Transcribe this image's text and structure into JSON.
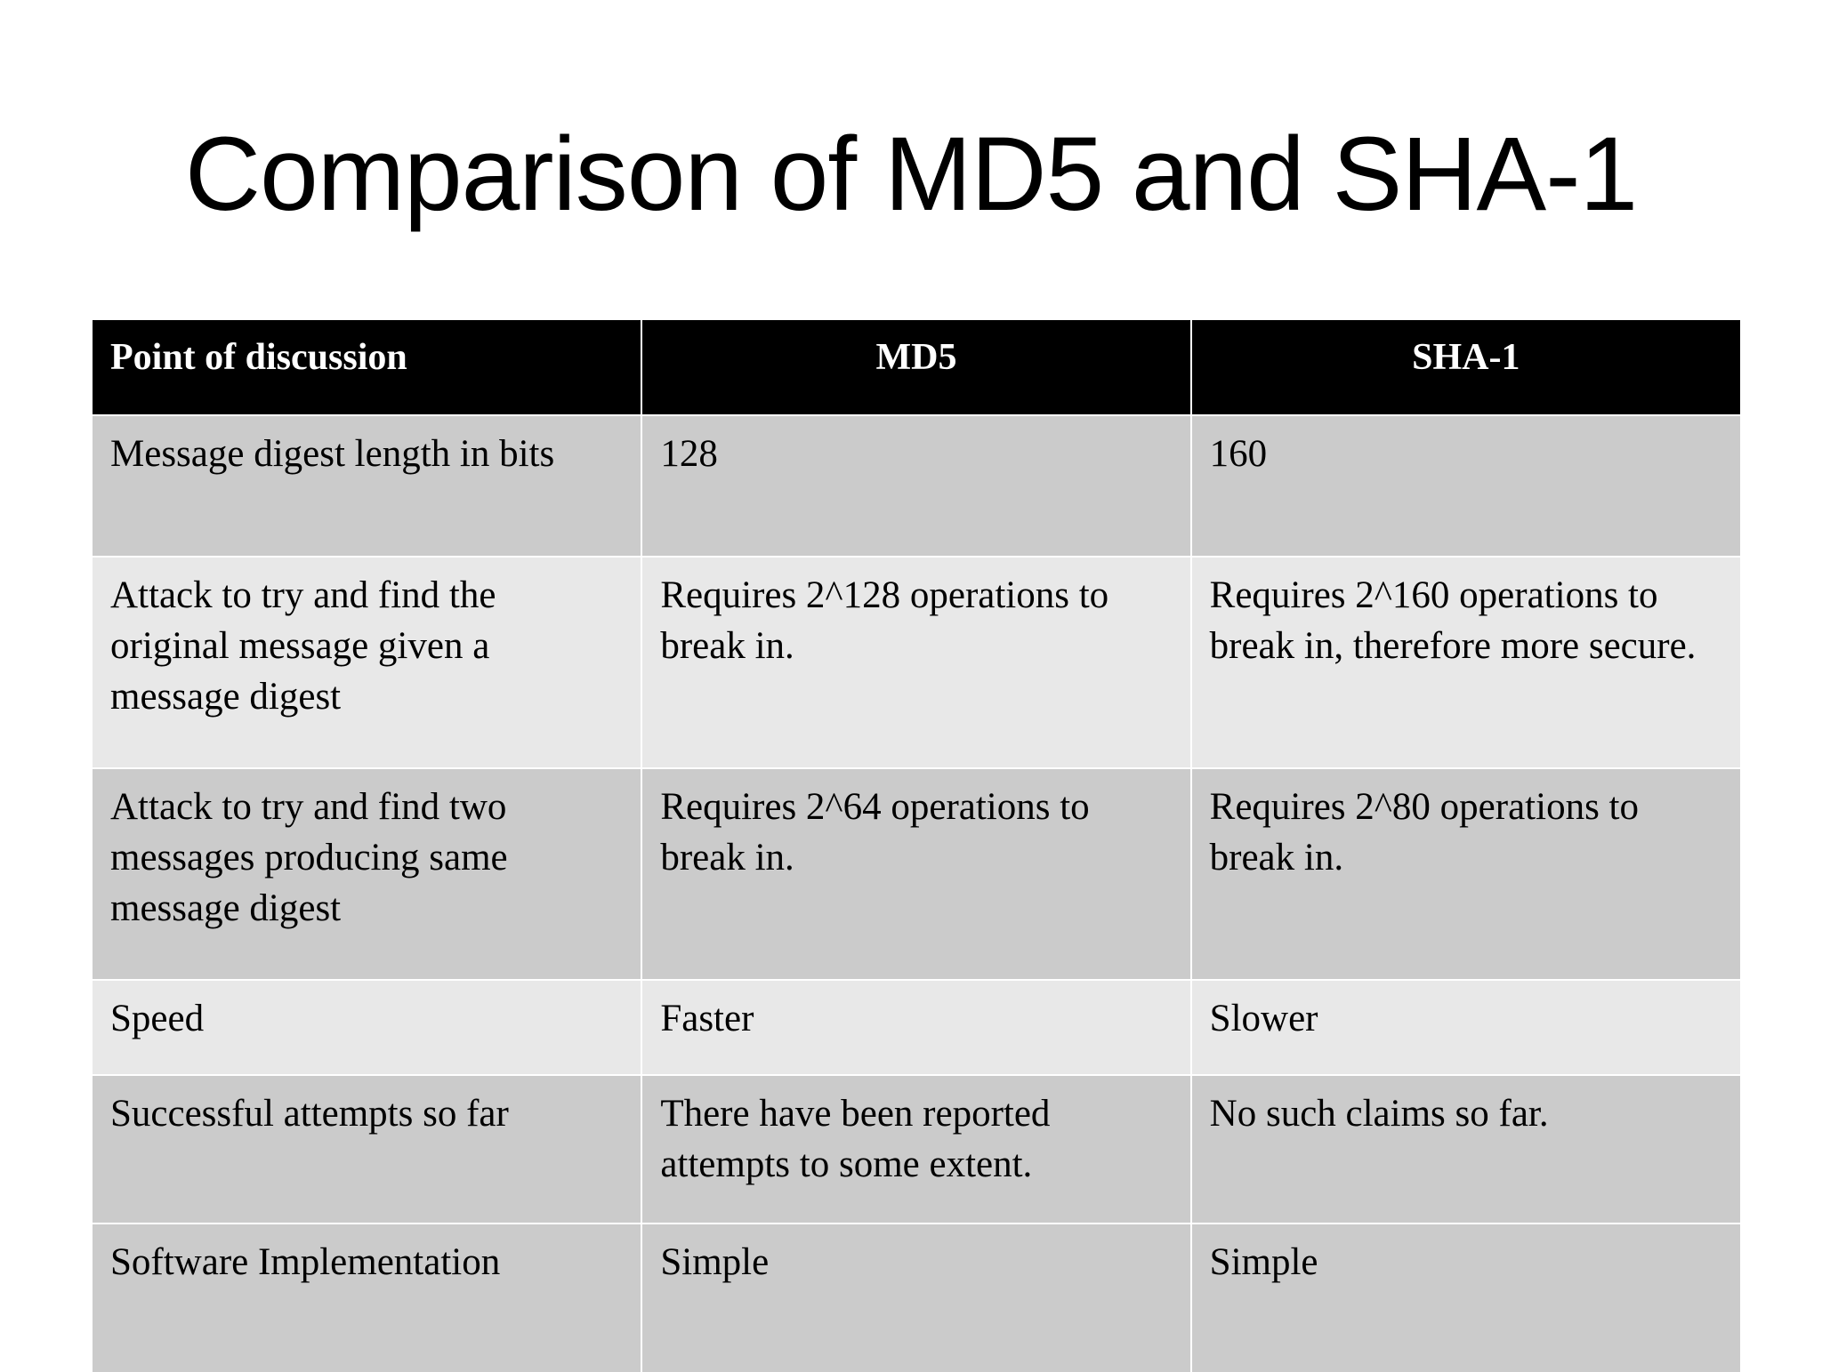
{
  "title": "Comparison of MD5 and SHA-1",
  "table": {
    "headers": [
      "Point of discussion",
      "MD5",
      "SHA-1"
    ],
    "rows": [
      [
        "Message digest length in bits",
        "128",
        "160"
      ],
      [
        "Attack to try and find the original message given a message digest",
        "Requires 2^128 operations to break in.",
        "Requires 2^160 operations to break in, therefore more secure."
      ],
      [
        "Attack to try and find two messages producing same message digest",
        "Requires 2^64 operations to break in.",
        "Requires 2^80 operations to break in."
      ],
      [
        "Speed",
        "Faster",
        "Slower"
      ],
      [
        "Successful attempts so far",
        "There have been reported attempts to some extent.",
        "No such claims so far."
      ],
      [
        "Software Implementation",
        "Simple",
        "Simple"
      ]
    ]
  },
  "colors": {
    "header_bg": "#000000",
    "row_dark": "#cbcbcb",
    "row_light": "#e8e8e8"
  }
}
